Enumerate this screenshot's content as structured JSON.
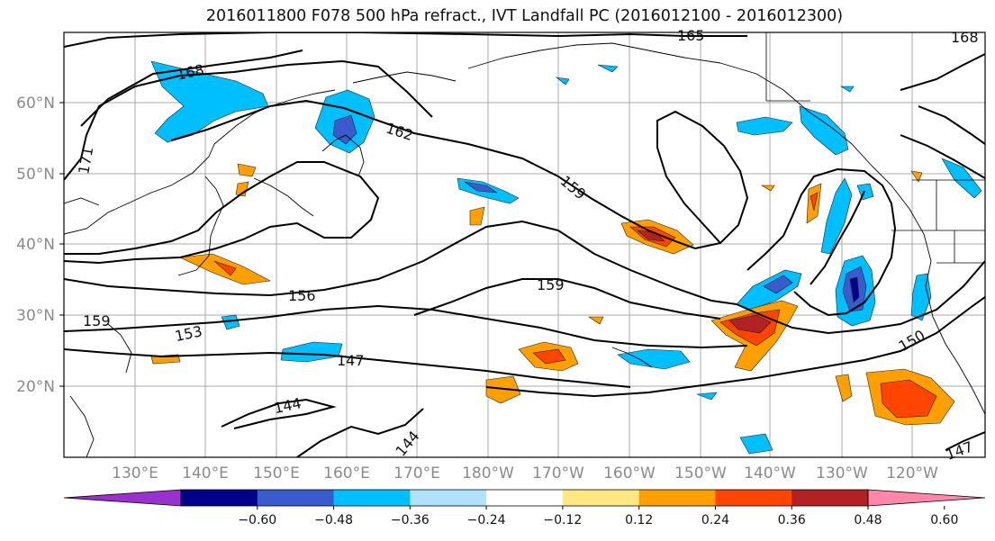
{
  "title": "2016011800 F078 500 hPa refract., IVT Landfall PC (2016012100 - 2016012300)",
  "lat_labels": [
    "60°N",
    "50°N",
    "40°N",
    "30°N",
    "20°N"
  ],
  "lon_labels": [
    "130°E",
    "140°E",
    "150°E",
    "160°E",
    "170°E",
    "180°W",
    "170°W",
    "160°W",
    "150°W",
    "140°W",
    "130°W",
    "120°W"
  ],
  "contour_labels": [
    "165",
    "168",
    "168",
    "171",
    "162",
    "159",
    "159",
    "159",
    "156",
    "153",
    "147",
    "144",
    "144",
    "150",
    "147"
  ],
  "colorbar": {
    "ticks": [
      "−0.60",
      "−0.48",
      "−0.36",
      "−0.24",
      "−0.12",
      "0.12",
      "0.24",
      "0.36",
      "0.48",
      "0.60"
    ],
    "colors": [
      "#9932cc",
      "#00008b",
      "#3a5bcc",
      "#00bfff",
      "#b0e2ff",
      "#ffffff",
      "#ffe884",
      "#ffa000",
      "#ff4500",
      "#b22222",
      "#ff88aa"
    ]
  }
}
